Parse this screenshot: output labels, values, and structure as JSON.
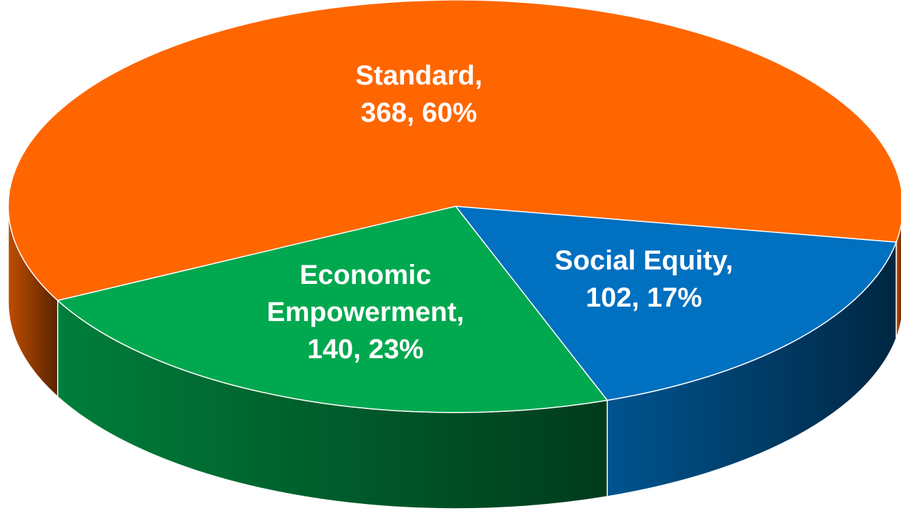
{
  "chart_data": {
    "type": "pie",
    "categories": [
      "Social Equity,",
      "Economic Empowerment,",
      "Standard,"
    ],
    "values": [
      102,
      140,
      368
    ],
    "value_labels": [
      "102, 17%",
      "140, 23%",
      "368, 60%"
    ],
    "colors": [
      "#0070c0",
      "#00a84f",
      "#ff6600"
    ]
  }
}
